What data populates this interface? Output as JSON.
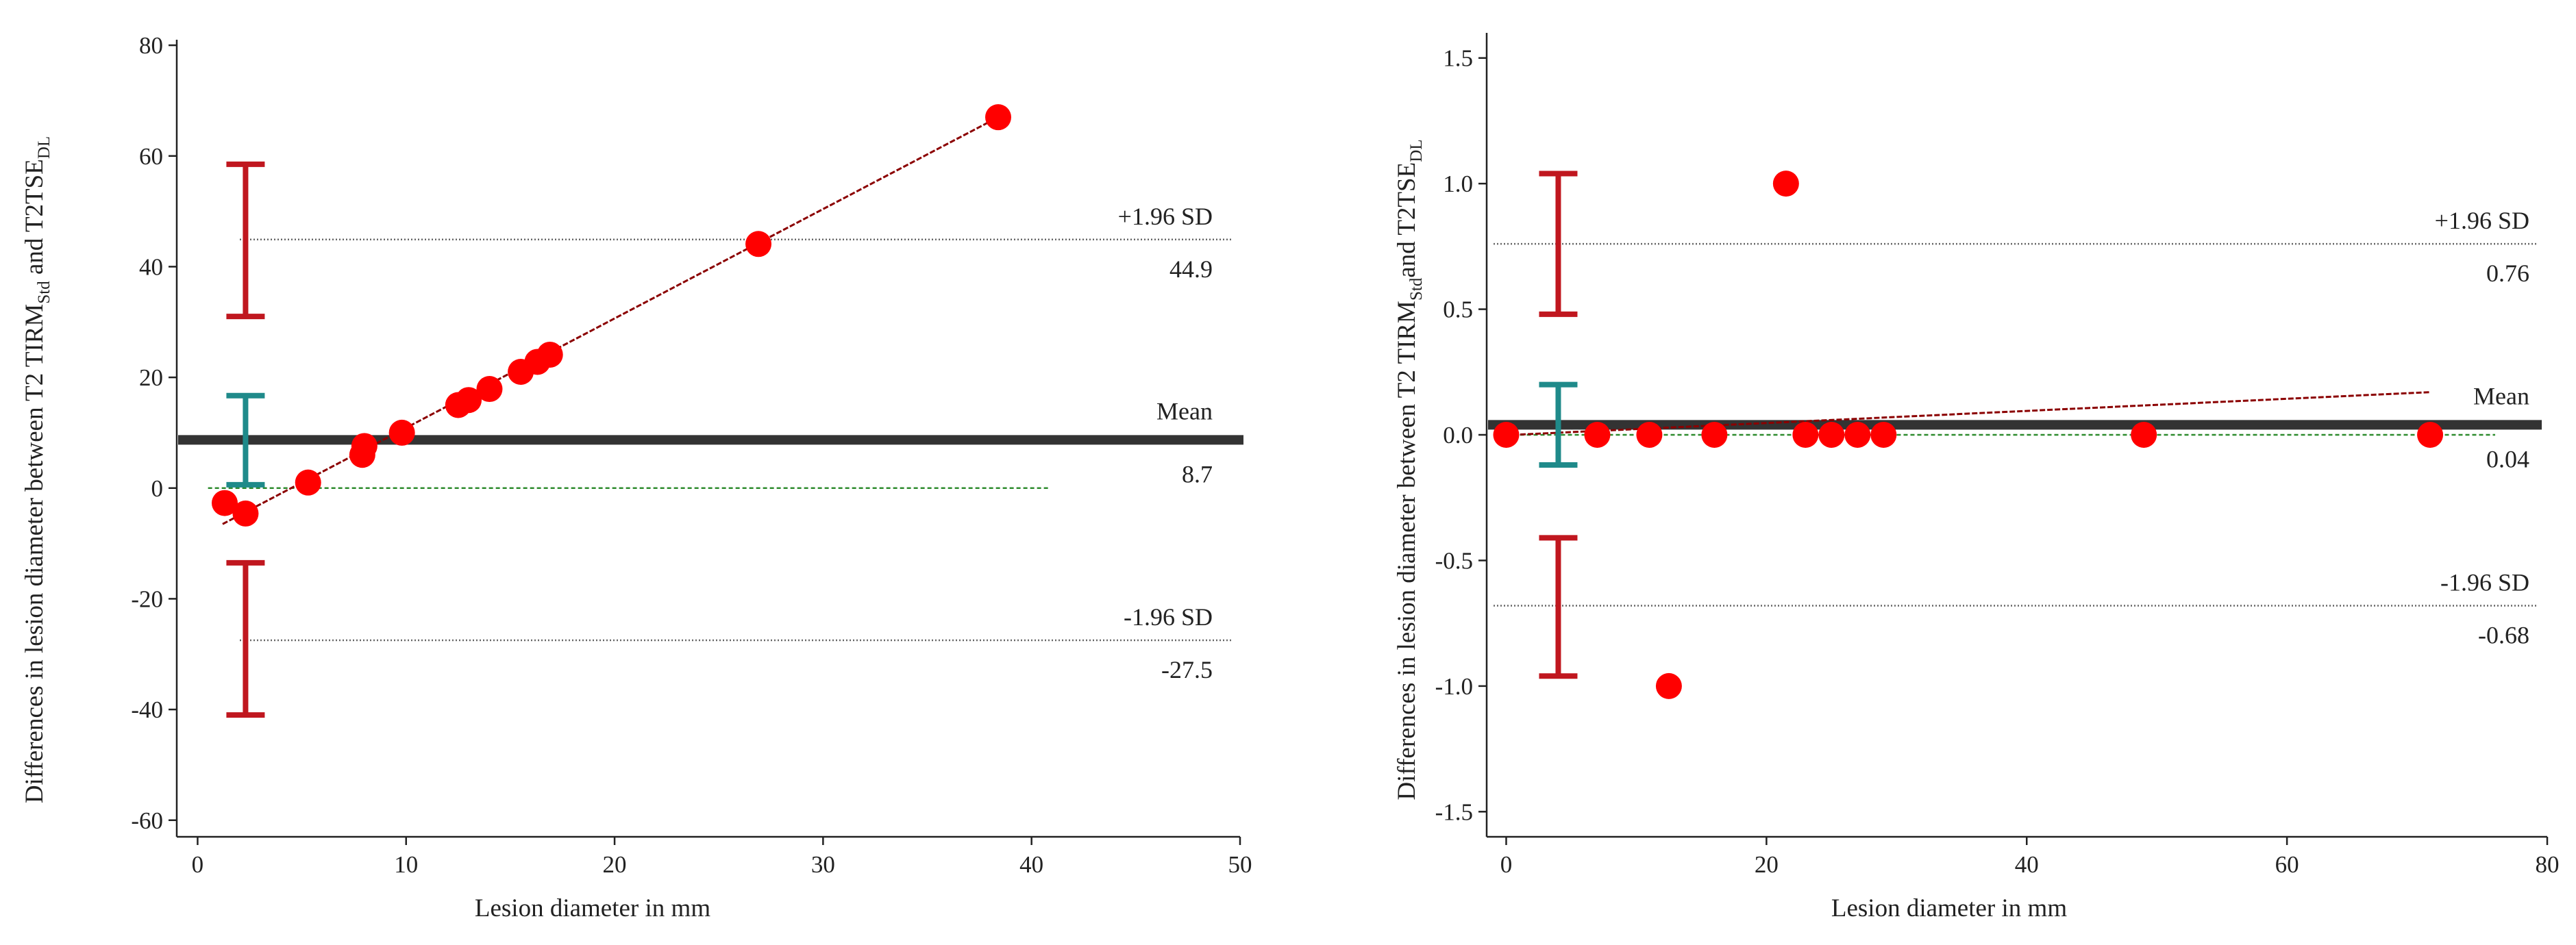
{
  "colors": {
    "points": "#ff0000",
    "regression": "#8b0000",
    "mean_line": "#333333",
    "mean_ci": "#1f8a8a",
    "limit_ci": "#c0171f",
    "zero_line": "#2e8b2e",
    "sd_line": "#666666",
    "axis": "#222222"
  },
  "chart_data": [
    {
      "type": "scatter",
      "subtype": "bland-altman",
      "title": "",
      "xlabel": "Lesion diameter in mm",
      "ylabel": {
        "prefix": "Differences in lesion diameter between T2 TIRM",
        "sub1": "Std",
        "middle": " and T2TSE",
        "sub2": "DL"
      },
      "xlim": [
        -1,
        50
      ],
      "ylim": [
        -63,
        81
      ],
      "xticks": [
        0,
        10,
        20,
        30,
        40,
        50
      ],
      "xtick_labels": [
        "0",
        "10",
        "20",
        "30",
        "40",
        "50"
      ],
      "yticks": [
        -60,
        -40,
        -20,
        0,
        20,
        40,
        60,
        80
      ],
      "ytick_labels": [
        "-60",
        "-40",
        "-20",
        "0",
        "20",
        "40",
        "60",
        "80"
      ],
      "points": {
        "x": [
          1.3,
          2.3,
          5.3,
          7.9,
          8.0,
          9.8,
          12.5,
          13.0,
          14.0,
          15.5,
          16.3,
          16.9,
          26.9,
          38.4
        ],
        "y": [
          -2.7,
          -4.6,
          1.0,
          6.0,
          7.6,
          10.0,
          15.0,
          15.9,
          17.9,
          21.0,
          22.8,
          24.1,
          44.1,
          67.0
        ]
      },
      "regression": {
        "x": [
          1.2,
          38.4
        ],
        "y": [
          -6.5,
          67.0
        ]
      },
      "mean": {
        "value": 8.7,
        "label": "Mean",
        "value_label": "8.7",
        "ci": [
          0.6,
          16.7
        ],
        "ci_x": 2.3
      },
      "upper_loa": {
        "value": 44.9,
        "label": "+1.96 SD",
        "value_label": "44.9",
        "ci": [
          31.0,
          58.5
        ],
        "ci_x": 2.3
      },
      "lower_loa": {
        "value": -27.5,
        "label": "-1.96 SD",
        "value_label": "-27.5",
        "ci": [
          -41.0,
          -13.5
        ],
        "ci_x": 2.3
      },
      "zero_line": {
        "y": 0,
        "x_range": [
          0.5,
          40.8
        ]
      },
      "grid": false,
      "legend": "none"
    },
    {
      "type": "scatter",
      "subtype": "bland-altman",
      "title": "",
      "xlabel": "Lesion diameter in mm",
      "ylabel": {
        "prefix": "Differences in lesion diameter between T2 TIRM",
        "sub1": "Std",
        "middle": "and T2TSE",
        "sub2": "DL"
      },
      "xlim": [
        -1.5,
        80
      ],
      "ylim": [
        -1.6,
        1.6
      ],
      "xticks": [
        0,
        20,
        40,
        60,
        80
      ],
      "xtick_labels": [
        "0",
        "20",
        "40",
        "60",
        "80"
      ],
      "yticks": [
        -1.5,
        -1.0,
        -0.5,
        0.0,
        0.5,
        1.0,
        1.5
      ],
      "ytick_labels": [
        "-1.5",
        "-1.0",
        "-0.5",
        "0.0",
        "0.5",
        "1.0",
        "1.5"
      ],
      "points": {
        "x": [
          0,
          7,
          11,
          12.5,
          16,
          21.5,
          23,
          25,
          27,
          29,
          49,
          71
        ],
        "y": [
          0,
          0,
          0,
          -1,
          0,
          1,
          0,
          0,
          0,
          0,
          0,
          0
        ]
      },
      "regression": {
        "x": [
          0.5,
          71
        ],
        "y": [
          0.0,
          0.17
        ]
      },
      "mean": {
        "value": 0.04,
        "label": "Mean",
        "value_label": "0.04",
        "ci": [
          -0.12,
          0.2
        ],
        "ci_x": 4
      },
      "upper_loa": {
        "value": 0.76,
        "label": "+1.96 SD",
        "value_label": "0.76",
        "ci": [
          0.48,
          1.04
        ],
        "ci_x": 4
      },
      "lower_loa": {
        "value": -0.68,
        "label": "-1.96 SD",
        "value_label": "-0.68",
        "ci": [
          -0.96,
          -0.41
        ],
        "ci_x": 4
      },
      "zero_line": {
        "y": 0,
        "x_range": [
          0,
          76
        ]
      },
      "grid": false,
      "legend": "none"
    }
  ]
}
